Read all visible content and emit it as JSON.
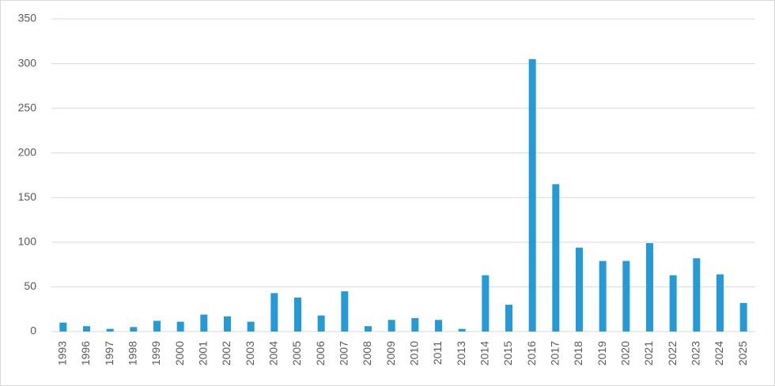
{
  "chart_data": {
    "type": "bar",
    "categories": [
      "1993",
      "1996",
      "1997",
      "1998",
      "1999",
      "2000",
      "2001",
      "2002",
      "2003",
      "2004",
      "2005",
      "2006",
      "2007",
      "2008",
      "2009",
      "2010",
      "2011",
      "2013",
      "2014",
      "2015",
      "2016",
      "2017",
      "2018",
      "2019",
      "2020",
      "2021",
      "2022",
      "2023",
      "2024",
      "2025"
    ],
    "values": [
      10,
      6,
      3,
      5,
      12,
      11,
      19,
      17,
      11,
      43,
      38,
      18,
      45,
      6,
      13,
      15,
      13,
      3,
      63,
      30,
      305,
      165,
      94,
      79,
      79,
      99,
      63,
      82,
      64,
      32
    ],
    "color": "#259ad8",
    "ylim": [
      0,
      350
    ],
    "yticks": [
      0,
      50,
      100,
      150,
      200,
      250,
      300,
      350
    ],
    "grid": true
  }
}
